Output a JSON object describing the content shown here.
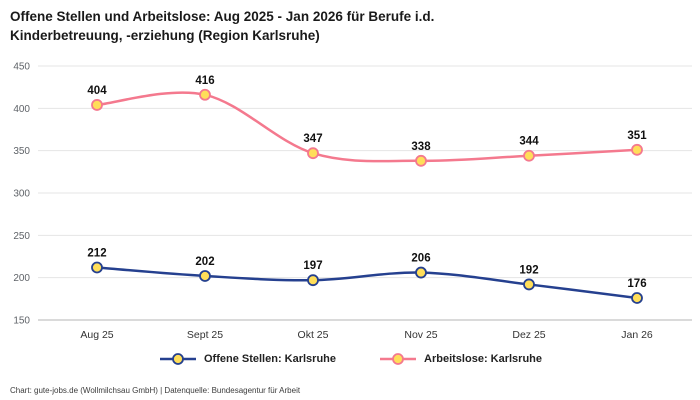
{
  "header": {
    "title": "Offene Stellen und Arbeitslose: Aug 2025 - Jan 2026 für Berufe i.d.\nKinderbetreuung, -erziehung (Region Karlsruhe)"
  },
  "footer": {
    "credit": "Chart: gute-jobs.de (Wollmilchsau GmbH) | Datenquelle: Bundesagentur für Arbeit"
  },
  "chart_data": {
    "type": "line",
    "title": "Offene Stellen und Arbeitslose: Aug 2025 - Jan 2026 für Berufe i.d. Kinderbetreuung, -erziehung (Region Karlsruhe)",
    "categories": [
      "Aug 25",
      "Sept 25",
      "Okt 25",
      "Nov 25",
      "Dez 25",
      "Jan 26"
    ],
    "series": [
      {
        "name": "Offene Stellen: Karlsruhe",
        "values": [
          212,
          202,
          197,
          206,
          192,
          176
        ],
        "color": "#25408f"
      },
      {
        "name": "Arbeitslose: Karlsruhe",
        "values": [
          404,
          416,
          347,
          338,
          344,
          351
        ],
        "color": "#f4798e"
      }
    ],
    "marker_fill": "#ffde59",
    "value_label_color": "#111111",
    "grid_color": "#e4e4e4",
    "axis_color": "#b5b5b5",
    "ytick_color": "#5f6368",
    "xtick_color": "#333333",
    "ylim": [
      150,
      450
    ],
    "yticks": [
      150,
      200,
      250,
      300,
      350,
      400,
      450
    ],
    "grid": "horizontal",
    "legend_position": "bottom"
  }
}
